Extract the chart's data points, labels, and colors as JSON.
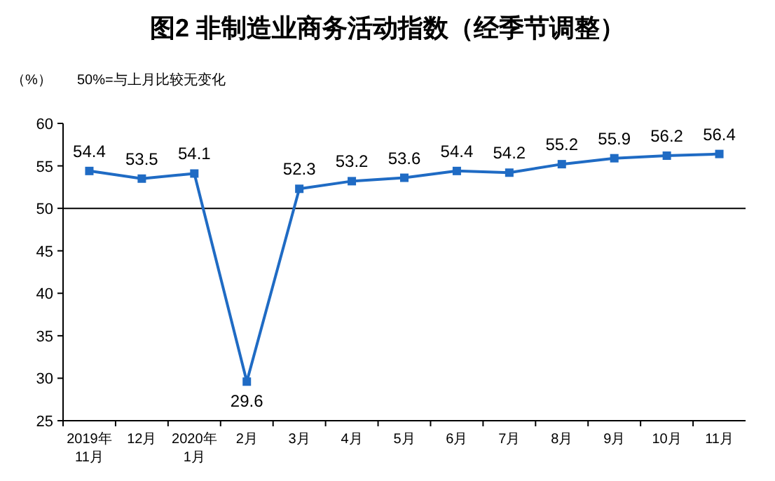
{
  "chart_data": {
    "type": "line",
    "title": "图2  非制造业商务活动指数（经季节调整）",
    "ylabel": "（%）",
    "annotations": [
      "50%=与上月比较无变化"
    ],
    "categories": [
      "2019年\n11月",
      "12月",
      "2020年\n1月",
      "2月",
      "3月",
      "4月",
      "5月",
      "6月",
      "7月",
      "8月",
      "9月",
      "10月",
      "11月"
    ],
    "series": [
      {
        "color": "#1f6bc4",
        "values": [
          54.4,
          53.5,
          54.1,
          29.6,
          52.3,
          53.2,
          53.6,
          54.4,
          54.2,
          55.2,
          55.9,
          56.2,
          56.4
        ]
      }
    ],
    "ylim": [
      25,
      60
    ],
    "yticks": [
      25,
      30,
      35,
      40,
      45,
      50,
      55,
      60
    ],
    "ref_lines": [
      {
        "axis": "y",
        "value": 50,
        "color": "#000000"
      }
    ],
    "data_labels": true,
    "marker": "square",
    "line_style": "solid",
    "grid": false
  }
}
